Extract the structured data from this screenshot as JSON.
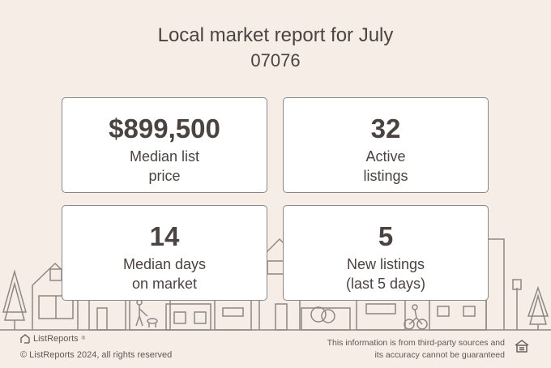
{
  "report": {
    "title": "Local market report for July",
    "zip": "07076"
  },
  "cards": [
    {
      "value": "$899,500",
      "label_line1": "Median list",
      "label_line2": "price"
    },
    {
      "value": "32",
      "label_line1": "Active",
      "label_line2": "listings"
    },
    {
      "value": "14",
      "label_line1": "Median days",
      "label_line2": "on market"
    },
    {
      "value": "5",
      "label_line1": "New listings",
      "label_line2": "(last 5 days)"
    }
  ],
  "footer": {
    "brand": "ListReports",
    "brand_mark": "®",
    "copyright": "© ListReports 2024, all rights reserved",
    "disclaimer_line1": "This information is from third-party sources and",
    "disclaimer_line2": "its accuracy cannot be guaranteed"
  },
  "icons": {
    "logo": "house-logo-icon",
    "equal_housing": "equal-housing-icon"
  },
  "colors": {
    "background": "#f6ede7",
    "text": "#4a4340",
    "line_art": "#8e8783",
    "card": "#ffffff"
  }
}
